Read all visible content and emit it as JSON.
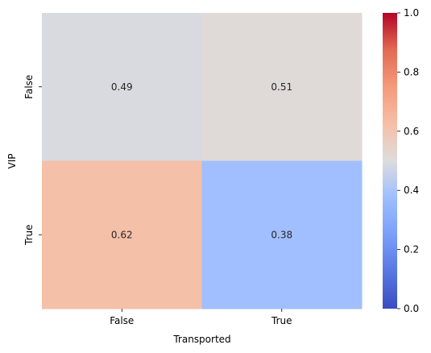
{
  "chart_data": {
    "type": "heatmap",
    "title": "",
    "xlabel": "Transported",
    "ylabel": "VIP",
    "x_categories": [
      "False",
      "True"
    ],
    "y_categories": [
      "False",
      "True"
    ],
    "values": [
      [
        0.49,
        0.51
      ],
      [
        0.62,
        0.38
      ]
    ],
    "colormap": "coolwarm",
    "vmin": 0.0,
    "vmax": 1.0,
    "colorbar_ticks": [
      "0.0",
      "0.2",
      "0.4",
      "0.6",
      "0.8",
      "1.0"
    ],
    "annotations": true,
    "grid": false
  }
}
